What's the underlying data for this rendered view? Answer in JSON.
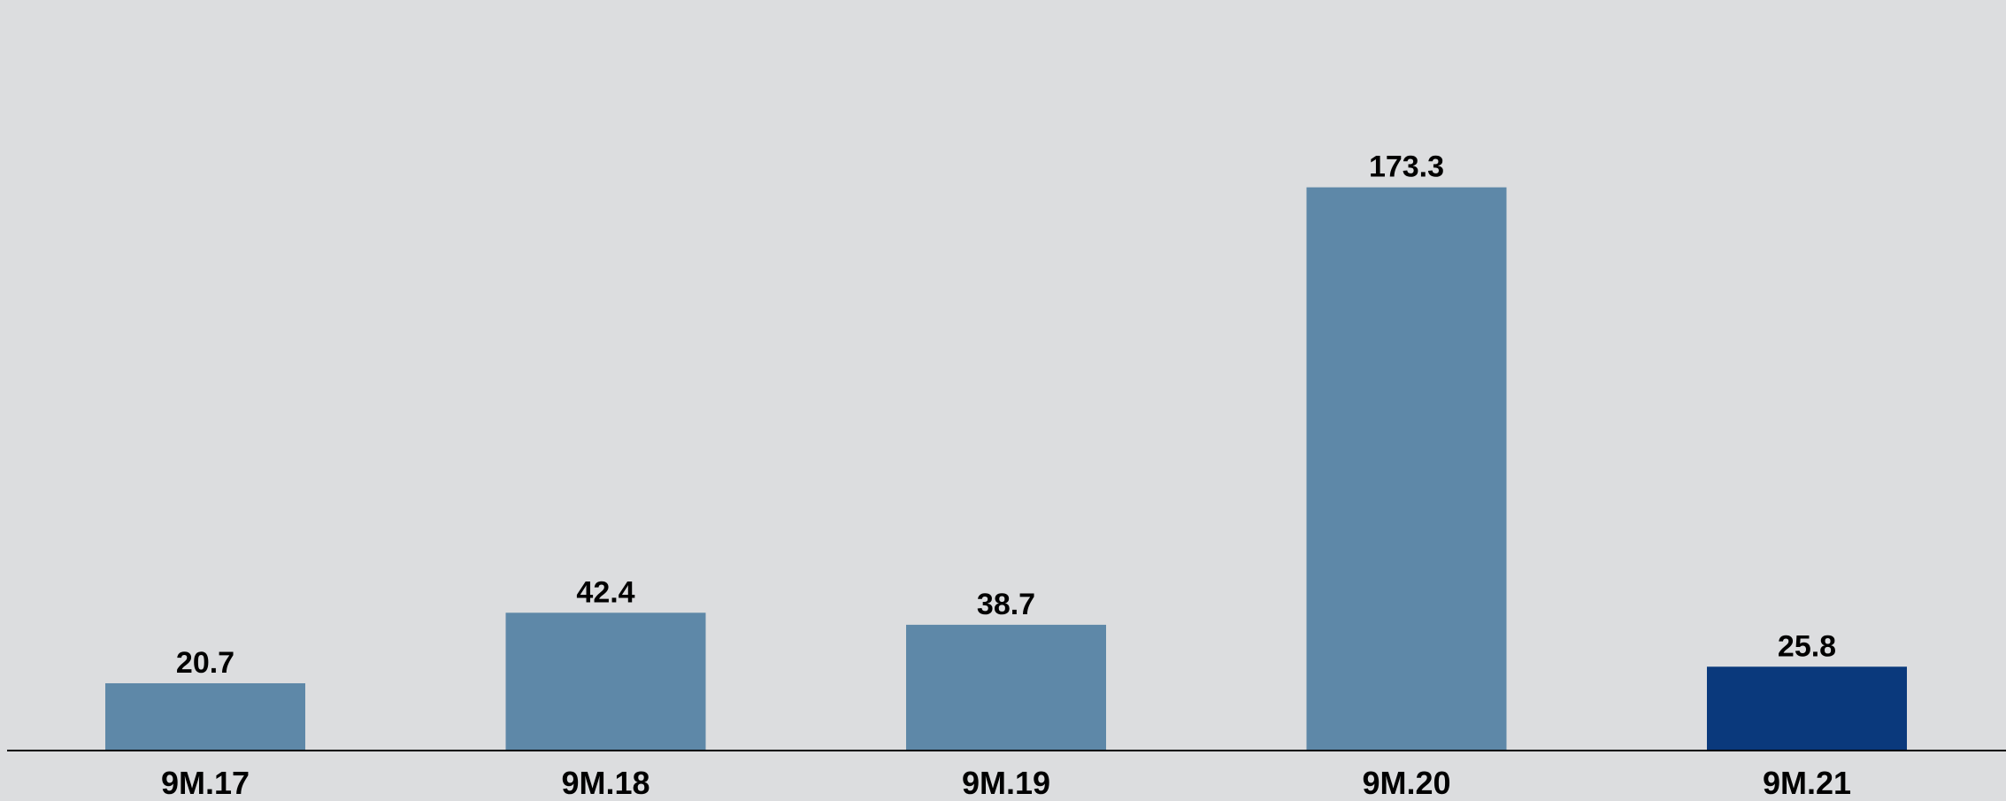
{
  "chart_data": {
    "type": "bar",
    "title": "",
    "xlabel": "",
    "ylabel": "",
    "categories": [
      "9M.17",
      "9M.18",
      "9M.19",
      "9M.20",
      "9M.21"
    ],
    "values": [
      20.7,
      42.4,
      38.7,
      173.3,
      25.8
    ],
    "data_labels": [
      "20.7",
      "42.4",
      "38.7",
      "173.3",
      "25.8"
    ],
    "ylim": [
      0,
      190
    ],
    "grid": false,
    "legend": "none",
    "colors": {
      "background": "#dcdddf",
      "bar": "#5e88a8",
      "highlight_bar": "#0a397c",
      "axis": "#000000",
      "text": "#000000"
    },
    "highlight_index": 4
  }
}
